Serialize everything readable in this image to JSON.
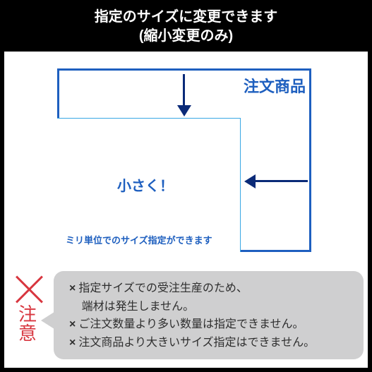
{
  "colors": {
    "outer_border": "#1e5fbf",
    "inner_border": "#38a7e4",
    "arrow": "#0a2a78",
    "accent_text": "#1e5fbf",
    "notice_red": "#d8363f",
    "bubble_bg": "#cfcfd0"
  },
  "title_line1": "指定のサイズに変更できます",
  "title_line2": "(縮小変更のみ)",
  "diagram": {
    "product_label": "注文商品",
    "center_label": "小さく！",
    "mm_label": "ミリ単位でのサイズ指定ができます"
  },
  "notice": {
    "label_line1": "注",
    "label_line2": "意",
    "x_mark": "×",
    "line1a": "指定サイズでの受注生産のため、",
    "line1b": "端材は発生しません。",
    "line2": "ご注文数量より多い数量は指定できません。",
    "line3": "注文商品より大きいサイズ指定はできません。"
  }
}
